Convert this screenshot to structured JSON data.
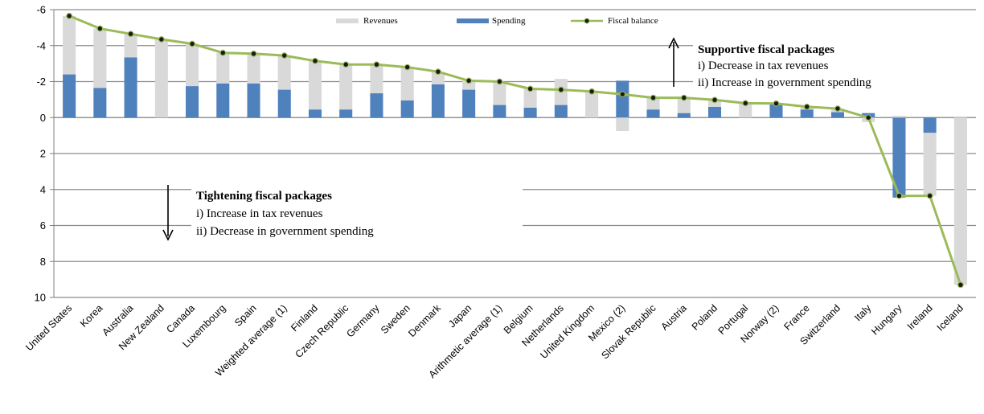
{
  "chart_data": {
    "type": "bar",
    "stacked": true,
    "y_axis_inverted": true,
    "ylim": [
      -6,
      10
    ],
    "yticks": [
      -6,
      -4,
      -2,
      0,
      2,
      4,
      6,
      8,
      10
    ],
    "grid": "horizontal",
    "legend_position": "top-center",
    "colors": {
      "revenues": "#d9d9d9",
      "spending": "#4f81bd",
      "balance": "#9bbb59",
      "marker": "#1a1a1a"
    },
    "categories": [
      "United States",
      "Korea",
      "Australia",
      "New Zealand",
      "Canada",
      "Luxembourg",
      "Spain",
      "Weighted average (1)",
      "Finland",
      "Czech Republic",
      "Germany",
      "Sweden",
      "Denmark",
      "Japan",
      "Arithmetic average (1)",
      "Belgium",
      "Netherlands",
      "United Kingdom",
      "Mexico (2)",
      "Slovak Republic",
      "Austria",
      "Poland",
      "Portugal",
      "Norway (2)",
      "France",
      "Switzerland",
      "Italy",
      "Hungary",
      "Ireland",
      "Iceland"
    ],
    "series": [
      {
        "name": "Spending",
        "type": "bar",
        "values": [
          -2.4,
          -1.65,
          -3.35,
          0,
          -1.75,
          -1.9,
          -1.9,
          -1.55,
          -0.45,
          -0.45,
          -1.35,
          -0.95,
          -1.85,
          -1.55,
          -0.7,
          -0.55,
          -0.7,
          0,
          -2.05,
          -0.45,
          -0.25,
          -0.6,
          0,
          -0.75,
          -0.45,
          -0.3,
          -0.25,
          4.45,
          0.85,
          0
        ]
      },
      {
        "name": "Revenues",
        "type": "bar",
        "values": [
          -3.25,
          -3.3,
          -1.3,
          -4.35,
          -2.35,
          -1.7,
          -1.65,
          -1.9,
          -2.7,
          -2.5,
          -1.6,
          -1.85,
          -0.7,
          -0.5,
          -1.3,
          -1.05,
          -1.45,
          -1.45,
          0.75,
          -0.65,
          -0.85,
          -0.4,
          -0.8,
          -0.05,
          -0.15,
          -0.2,
          0.25,
          -0.1,
          3.5,
          9.3
        ]
      },
      {
        "name": "Fiscal balance",
        "type": "line",
        "values": [
          -5.65,
          -4.95,
          -4.65,
          -4.35,
          -4.1,
          -3.6,
          -3.55,
          -3.45,
          -3.15,
          -2.95,
          -2.95,
          -2.8,
          -2.55,
          -2.05,
          -2.0,
          -1.6,
          -1.55,
          -1.45,
          -1.3,
          -1.1,
          -1.1,
          -0.98,
          -0.8,
          -0.78,
          -0.6,
          -0.5,
          0.0,
          4.35,
          4.35,
          9.3
        ]
      }
    ],
    "annotations": [
      {
        "title": "Supportive fiscal packages",
        "lines": [
          "i) Decrease in tax revenues",
          "ii) Increase in government spending"
        ]
      },
      {
        "title": "Tightening fiscal packages",
        "lines": [
          "i) Increase in tax revenues",
          "ii) Decrease in government spending"
        ]
      }
    ]
  }
}
